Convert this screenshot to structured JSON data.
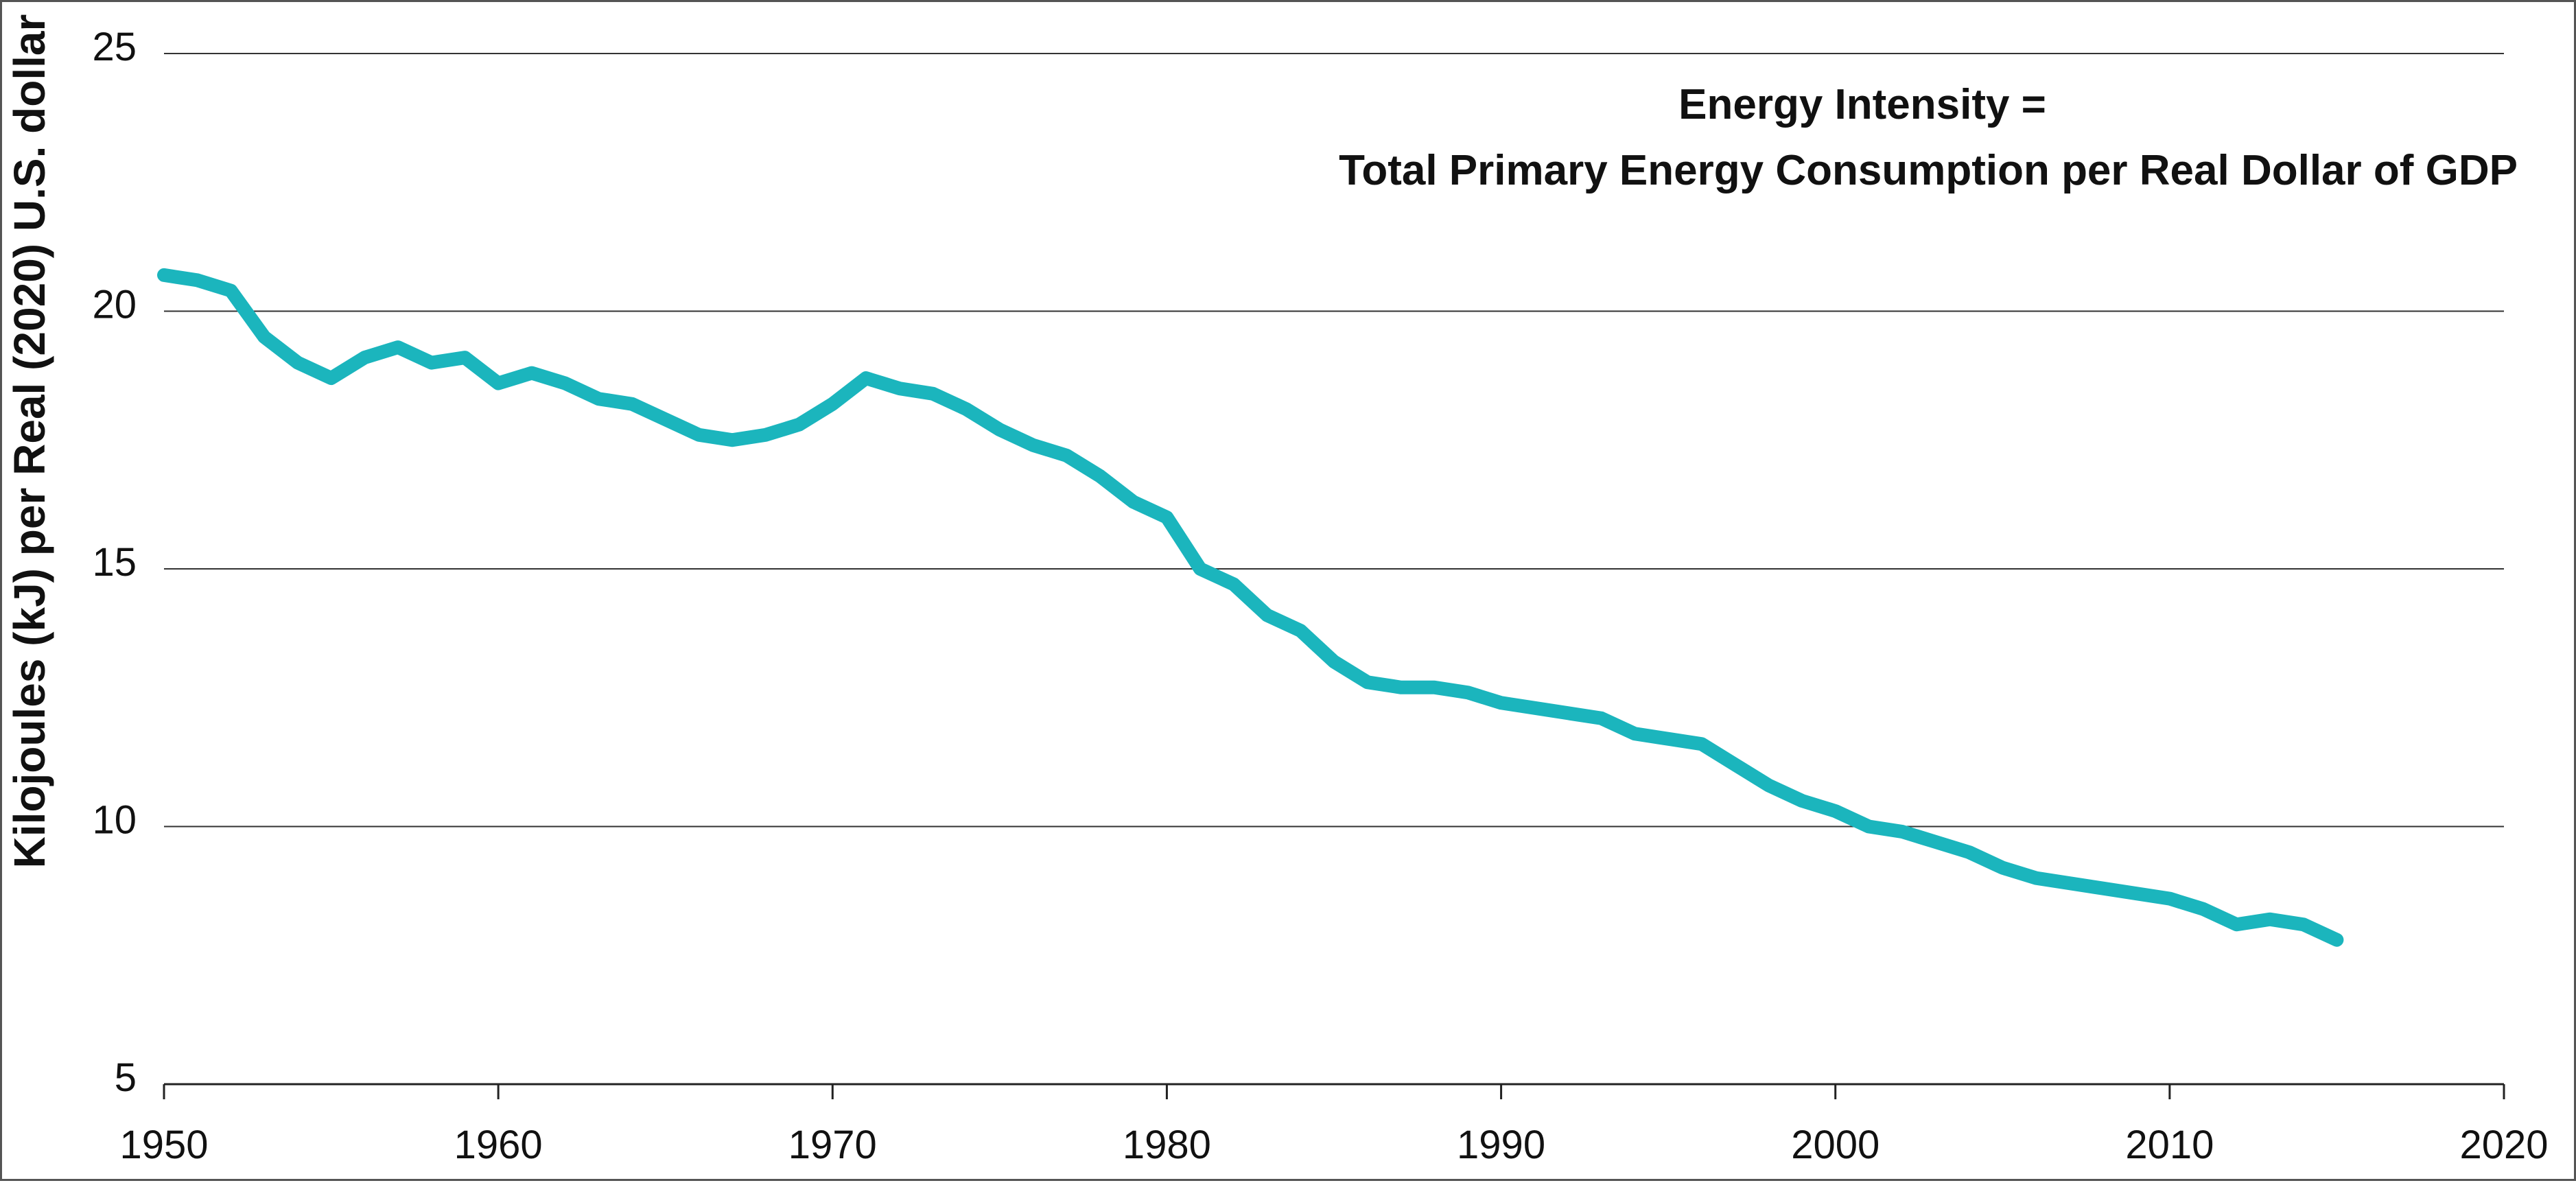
{
  "chart_data": {
    "type": "line",
    "title": "",
    "xlabel": "",
    "ylabel": "Kilojoules (kJ) per Real (2020) U.S. dollar",
    "annotation_lines": [
      "Energy Intensity =",
      "Total Primary Energy Consumption per Real Dollar of GDP"
    ],
    "xlim": [
      1950,
      2020
    ],
    "ylim": [
      5,
      25
    ],
    "x_ticks": [
      1950,
      1960,
      1970,
      1980,
      1990,
      2000,
      2010,
      2020
    ],
    "y_ticks": [
      5,
      10,
      15,
      20,
      25
    ],
    "grid": "horizontal",
    "line_color": "#1bb5bd",
    "series": [
      {
        "name": "",
        "x": [
          1950,
          1951,
          1952,
          1953,
          1954,
          1955,
          1956,
          1957,
          1958,
          1959,
          1960,
          1961,
          1962,
          1963,
          1964,
          1965,
          1966,
          1967,
          1968,
          1969,
          1970,
          1971,
          1972,
          1973,
          1974,
          1975,
          1976,
          1977,
          1978,
          1979,
          1980,
          1981,
          1982,
          1983,
          1984,
          1985,
          1986,
          1987,
          1988,
          1989,
          1990,
          1991,
          1992,
          1993,
          1994,
          1995,
          1996,
          1997,
          1998,
          1999,
          2000,
          2001,
          2002,
          2003,
          2004,
          2005,
          2006,
          2007,
          2008,
          2009,
          2010,
          2011,
          2012,
          2013,
          2014,
          2015
        ],
        "values": [
          20.7,
          20.6,
          20.4,
          19.5,
          19.0,
          18.7,
          19.1,
          19.3,
          19.0,
          19.1,
          18.6,
          18.8,
          18.6,
          18.3,
          18.2,
          17.9,
          17.6,
          17.5,
          17.6,
          17.8,
          18.2,
          18.7,
          18.5,
          18.4,
          18.1,
          17.7,
          17.4,
          17.2,
          16.8,
          16.3,
          16.0,
          15.0,
          14.7,
          14.1,
          13.8,
          13.2,
          12.8,
          12.7,
          12.7,
          12.6,
          12.4,
          12.3,
          12.2,
          12.1,
          11.8,
          11.7,
          11.6,
          11.2,
          10.8,
          10.5,
          10.3,
          10.0,
          9.9,
          9.7,
          9.5,
          9.2,
          9.0,
          8.9,
          8.8,
          8.7,
          8.6,
          8.4,
          8.1,
          8.2,
          8.1,
          7.8
        ]
      }
    ]
  }
}
